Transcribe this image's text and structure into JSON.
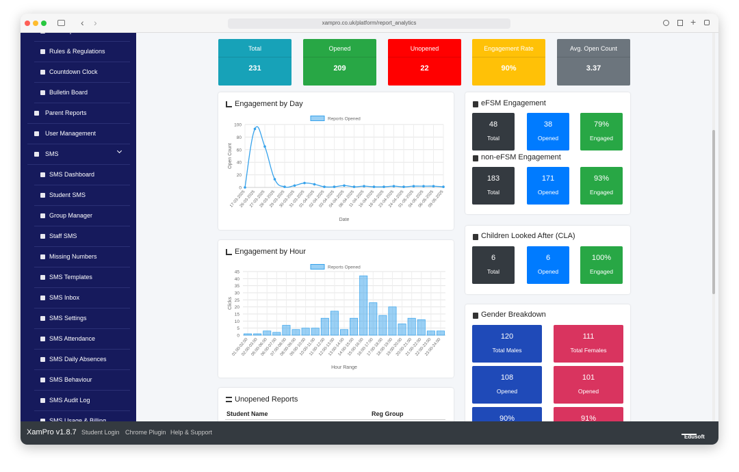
{
  "browser": {
    "url": "xampro.co.uk/platform/report_analytics"
  },
  "sidebar": {
    "sections": [
      {
        "items": [
          "Bulk Import Via CSV",
          "Rules & Regulations",
          "Countdown Clock",
          "Bulletin Board"
        ]
      },
      {
        "label": "Parent Reports"
      },
      {
        "label": "User Management"
      },
      {
        "label": "SMS",
        "items": [
          "SMS Dashboard",
          "Student SMS",
          "Group Manager",
          "Staff SMS",
          "Missing Numbers",
          "SMS Templates",
          "SMS Inbox",
          "SMS Settings",
          "SMS Attendance",
          "SMS Daily Absences",
          "SMS Behaviour",
          "SMS Audit Log",
          "SMS Usage & Billing"
        ]
      }
    ]
  },
  "stats": [
    {
      "label": "Total",
      "value": "231"
    },
    {
      "label": "Opened",
      "value": "209"
    },
    {
      "label": "Unopened",
      "value": "22"
    },
    {
      "label": "Engagement Rate",
      "value": "90%"
    },
    {
      "label": "Avg. Open Count",
      "value": "3.37"
    }
  ],
  "chart_data": [
    {
      "type": "line",
      "title": "Engagement by Day",
      "xlabel": "Date",
      "ylabel": "Open Count",
      "grid": true,
      "categories": [
        "17-03-2025",
        "26-03-2025",
        "27-03-2025",
        "28-03-2025",
        "29-03-2025",
        "30-03-2025",
        "31-03-2025",
        "01-04-2025",
        "02-04-2025",
        "03-04-2025",
        "04-04-2025",
        "08-04-2025",
        "11-04-2025",
        "16-04-2025",
        "18-04-2025",
        "23-04-2025",
        "24-04-2025",
        "01-05-2025",
        "04-05-2025",
        "06-05-2025",
        "09-05-2025"
      ],
      "series": [
        {
          "name": "Reports Opened",
          "color": "#36a2eb",
          "values": [
            0,
            93,
            65,
            13,
            1,
            3,
            7,
            5,
            1,
            1,
            3,
            1,
            2,
            1,
            1,
            2,
            1,
            2,
            2,
            2,
            1
          ]
        }
      ],
      "ylim": [
        0,
        100
      ],
      "yticks": [
        0,
        20,
        40,
        60,
        80,
        100
      ]
    },
    {
      "type": "bar",
      "title": "Engagement by Hour",
      "xlabel": "Hour Range",
      "ylabel": "Clicks",
      "grid": true,
      "categories": [
        "01:00-02:00",
        "02:00-03:00",
        "05:00-06:00",
        "06:00-07:00",
        "07:00-08:00",
        "08:00-09:00",
        "09:00-10:00",
        "10:00-11:00",
        "11:00-12:00",
        "12:00-13:00",
        "13:00-14:00",
        "14:00-15:00",
        "15:00-16:00",
        "16:00-17:00",
        "17:00-18:00",
        "18:00-19:00",
        "19:00-20:00",
        "20:00-21:00",
        "21:00-22:00",
        "22:00-23:00",
        "23:00-24:00"
      ],
      "series": [
        {
          "name": "Reports Opened",
          "color": "#36a2eb",
          "values": [
            1,
            1,
            3,
            2,
            7,
            4,
            5,
            5,
            12,
            17,
            4,
            12,
            42,
            23,
            14,
            20,
            8,
            12,
            11,
            3,
            3
          ]
        }
      ],
      "ylim": [
        0,
        45
      ],
      "yticks": [
        0,
        5,
        10,
        15,
        20,
        25,
        30,
        35,
        40,
        45
      ]
    }
  ],
  "panels": [
    {
      "title": "eFSM Engagement",
      "boxes": [
        {
          "value": "48",
          "label": "Total"
        },
        {
          "value": "38",
          "label": "Opened"
        },
        {
          "value": "79%",
          "label": "Engaged"
        }
      ]
    },
    {
      "title": "non-eFSM Engagement",
      "boxes": [
        {
          "value": "183",
          "label": "Total"
        },
        {
          "value": "171",
          "label": "Opened"
        },
        {
          "value": "93%",
          "label": "Engaged"
        }
      ]
    },
    {
      "title": "Children Looked After (CLA)",
      "boxes": [
        {
          "value": "6",
          "label": "Total"
        },
        {
          "value": "6",
          "label": "Opened"
        },
        {
          "value": "100%",
          "label": "Engaged"
        }
      ]
    },
    {
      "title": "Gender Breakdown",
      "boxes": [
        {
          "value": "120",
          "label": "Total Males"
        },
        {
          "value": "111",
          "label": "Total Females"
        },
        {
          "value": "108",
          "label": "Opened"
        },
        {
          "value": "101",
          "label": "Opened"
        },
        {
          "value": "90%"
        },
        {
          "value": "91%"
        }
      ]
    }
  ],
  "unopened": {
    "title": "Unopened Reports",
    "columns": [
      "Student Name",
      "Reg Group"
    ]
  },
  "footer": {
    "brand": "XamPro v1.8.7",
    "links": [
      "Student Login",
      "Chrome Plugin",
      "Help & Support"
    ],
    "logo": "Edusoft"
  }
}
